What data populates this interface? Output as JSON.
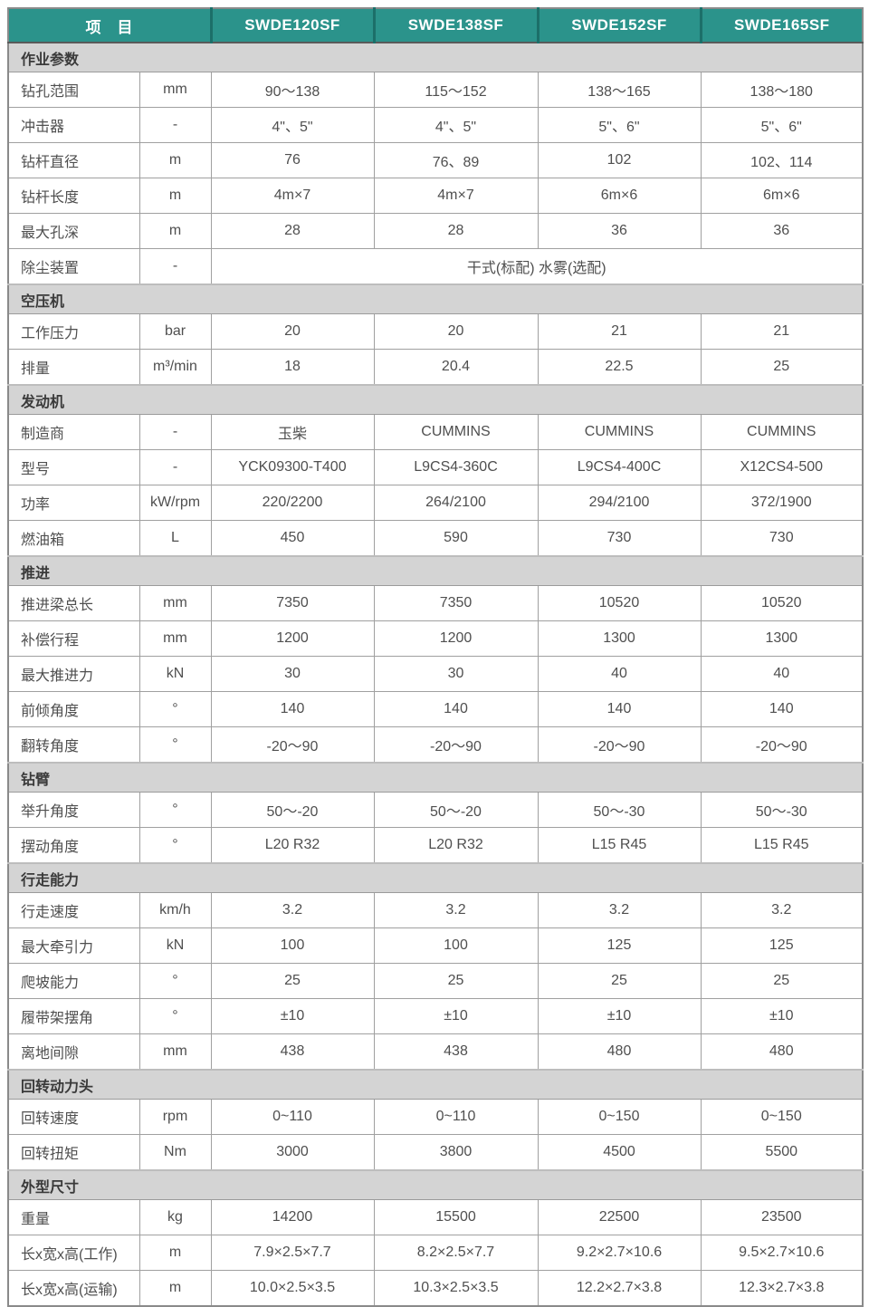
{
  "colors": {
    "header_bg": "#2b938b",
    "header_divider": "#1c6f69",
    "section_bg": "#d4d4d4"
  },
  "header": {
    "item_label": "项　目",
    "models": [
      "SWDE120SF",
      "SWDE138SF",
      "SWDE152SF",
      "SWDE165SF"
    ]
  },
  "sections": [
    {
      "title": "作业参数",
      "rows": [
        {
          "label": "钻孔范围",
          "unit": "mm",
          "values": [
            "90～138",
            "115～152",
            "138～165",
            "138～180"
          ]
        },
        {
          "label": "冲击器",
          "unit": "-",
          "values": [
            "4\"、5\"",
            "4\"、5\"",
            "5\"、6\"",
            "5\"、6\""
          ]
        },
        {
          "label": "钻杆直径",
          "unit": "m",
          "values": [
            "76",
            "76、89",
            "102",
            "102、114"
          ]
        },
        {
          "label": "钻杆长度",
          "unit": "m",
          "values": [
            "4m×7",
            "4m×7",
            "6m×6",
            "6m×6"
          ]
        },
        {
          "label": "最大孔深",
          "unit": "m",
          "values": [
            "28",
            "28",
            "36",
            "36"
          ]
        },
        {
          "label": "除尘装置",
          "unit": "-",
          "span": "干式(标配) 水雾(选配)"
        }
      ]
    },
    {
      "title": "空压机",
      "rows": [
        {
          "label": "工作压力",
          "unit": "bar",
          "values": [
            "20",
            "20",
            "21",
            "21"
          ]
        },
        {
          "label": "排量",
          "unit": "m³/min",
          "values": [
            "18",
            "20.4",
            "22.5",
            "25"
          ]
        }
      ]
    },
    {
      "title": "发动机",
      "rows": [
        {
          "label": "制造商",
          "unit": "-",
          "values": [
            "玉柴",
            "CUMMINS",
            "CUMMINS",
            "CUMMINS"
          ]
        },
        {
          "label": "型号",
          "unit": "-",
          "values": [
            "YCK09300-T400",
            "L9CS4-360C",
            "L9CS4-400C",
            "X12CS4-500"
          ]
        },
        {
          "label": "功率",
          "unit": "kW/rpm",
          "values": [
            "220/2200",
            "264/2100",
            "294/2100",
            "372/1900"
          ]
        },
        {
          "label": "燃油箱",
          "unit": "L",
          "values": [
            "450",
            "590",
            "730",
            "730"
          ]
        }
      ]
    },
    {
      "title": "推进",
      "rows": [
        {
          "label": "推进梁总长",
          "unit": "mm",
          "values": [
            "7350",
            "7350",
            "10520",
            "10520"
          ]
        },
        {
          "label": "补偿行程",
          "unit": "mm",
          "values": [
            "1200",
            "1200",
            "1300",
            "1300"
          ]
        },
        {
          "label": "最大推进力",
          "unit": "kN",
          "values": [
            "30",
            "30",
            "40",
            "40"
          ]
        },
        {
          "label": "前倾角度",
          "unit": "°",
          "values": [
            "140",
            "140",
            "140",
            "140"
          ]
        },
        {
          "label": "翻转角度",
          "unit": "°",
          "values": [
            "-20～90",
            "-20～90",
            "-20～90",
            "-20～90"
          ]
        }
      ]
    },
    {
      "title": "钻臂",
      "rows": [
        {
          "label": "举升角度",
          "unit": "°",
          "values": [
            "50～-20",
            "50～-20",
            "50～-30",
            "50～-30"
          ]
        },
        {
          "label": "摆动角度",
          "unit": "°",
          "values": [
            "L20 R32",
            "L20 R32",
            "L15 R45",
            "L15 R45"
          ]
        }
      ]
    },
    {
      "title": "行走能力",
      "rows": [
        {
          "label": "行走速度",
          "unit": "km/h",
          "values": [
            "3.2",
            "3.2",
            "3.2",
            "3.2"
          ]
        },
        {
          "label": "最大牵引力",
          "unit": "kN",
          "values": [
            "100",
            "100",
            "125",
            "125"
          ]
        },
        {
          "label": "爬坡能力",
          "unit": "°",
          "values": [
            "25",
            "25",
            "25",
            "25"
          ]
        },
        {
          "label": "履带架摆角",
          "unit": "°",
          "values": [
            "±10",
            "±10",
            "±10",
            "±10"
          ]
        },
        {
          "label": "离地间隙",
          "unit": "mm",
          "values": [
            "438",
            "438",
            "480",
            "480"
          ]
        }
      ]
    },
    {
      "title": "回转动力头",
      "rows": [
        {
          "label": "回转速度",
          "unit": "rpm",
          "values": [
            "0~110",
            "0~110",
            "0~150",
            "0~150"
          ]
        },
        {
          "label": "回转扭矩",
          "unit": "Nm",
          "values": [
            "3000",
            "3800",
            "4500",
            "5500"
          ]
        }
      ]
    },
    {
      "title": "外型尺寸",
      "rows": [
        {
          "label": "重量",
          "unit": "kg",
          "values": [
            "14200",
            "15500",
            "22500",
            "23500"
          ]
        },
        {
          "label": "长x宽x高(工作)",
          "unit": "m",
          "values": [
            "7.9×2.5×7.7",
            "8.2×2.5×7.7",
            "9.2×2.7×10.6",
            "9.5×2.7×10.6"
          ]
        },
        {
          "label": "长x宽x高(运输)",
          "unit": "m",
          "values": [
            "10.0×2.5×3.5",
            "10.3×2.5×3.5",
            "12.2×2.7×3.8",
            "12.3×2.7×3.8"
          ]
        }
      ]
    }
  ]
}
